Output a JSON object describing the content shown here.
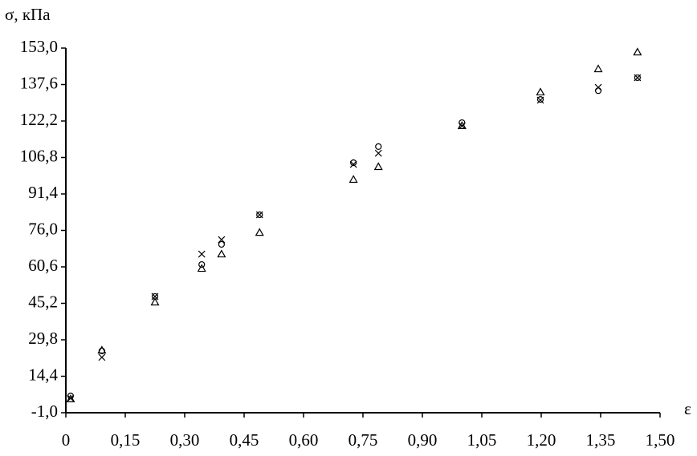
{
  "chart_data": {
    "type": "scatter",
    "y_label": "σ, кПа",
    "x_label": "ε",
    "xlim": [
      0,
      1.5
    ],
    "xticks": [
      0,
      {
        "value": 0.15,
        "label": "0,15"
      },
      {
        "value": 0.3,
        "label": "0,30"
      },
      {
        "value": 0.45,
        "label": "0,45"
      },
      {
        "value": 0.6,
        "label": "0,60"
      },
      {
        "value": 0.75,
        "label": "0,75"
      },
      {
        "value": 0.9,
        "label": "0,90"
      },
      {
        "value": 1.05,
        "label": "1,05"
      },
      {
        "value": 1.2,
        "label": "1,20"
      },
      {
        "value": 1.35,
        "label": "1,35"
      },
      {
        "value": 1.5,
        "label": "1,50"
      }
    ],
    "ylim": [
      -1.0,
      153.0
    ],
    "yticks": [
      {
        "value": -1.0,
        "label": "-1,0"
      },
      {
        "value": 14.4,
        "label": "14,4"
      },
      {
        "value": 29.8,
        "label": "29,8"
      },
      {
        "value": 45.2,
        "label": "45,2"
      },
      {
        "value": 60.6,
        "label": "60,6"
      },
      {
        "value": 76.0,
        "label": "76,0"
      },
      {
        "value": 91.4,
        "label": "91,4"
      },
      {
        "value": 106.8,
        "label": "106,8"
      },
      {
        "value": 122.2,
        "label": "122,2"
      },
      {
        "value": 137.6,
        "label": "137,6"
      },
      {
        "value": 153.0,
        "label": "153,0"
      }
    ],
    "x": [
      0.012,
      0.091,
      0.225,
      0.343,
      0.393,
      0.489,
      0.726,
      0.789,
      1.0,
      1.198,
      1.344,
      1.443
    ],
    "series": [
      {
        "marker": "circle",
        "color": "#000000",
        "values": [
          6.1,
          25.1,
          48.1,
          61.6,
          70.1,
          82.6,
          104.6,
          111.4,
          121.5,
          131.3,
          135.0,
          140.5
        ]
      },
      {
        "marker": "cross",
        "color": "#000000",
        "values": [
          5.1,
          22.4,
          48.1,
          66.0,
          72.1,
          82.6,
          103.9,
          108.6,
          120.2,
          131.0,
          136.4,
          140.5
        ]
      },
      {
        "marker": "triangle",
        "color": "#000000",
        "values": [
          4.8,
          25.4,
          45.7,
          59.9,
          66.0,
          75.1,
          97.5,
          102.9,
          120.2,
          134.4,
          144.2,
          151.3
        ]
      }
    ]
  }
}
